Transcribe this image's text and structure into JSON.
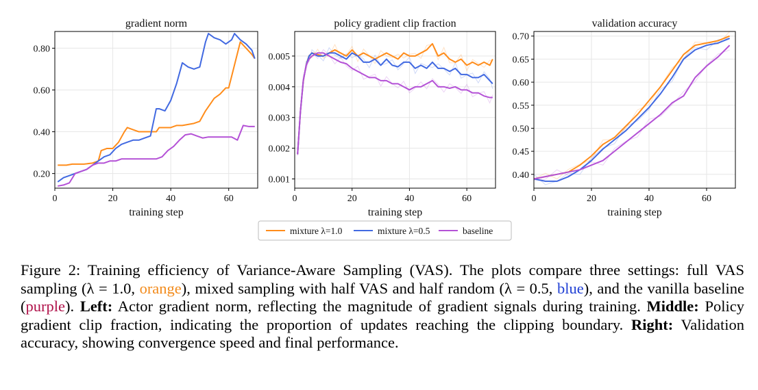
{
  "chart_data": [
    {
      "type": "line",
      "title": "gradient norm",
      "xlabel": "training step",
      "ylabel": "",
      "xlim": [
        0,
        70
      ],
      "ylim": [
        0.13,
        0.88
      ],
      "xticks": [
        0,
        20,
        40,
        60
      ],
      "yticks": [
        0.2,
        0.4,
        0.6,
        0.8
      ],
      "ytick_labels": [
        "0.20",
        "0.40",
        "0.60",
        "0.80"
      ],
      "grid": true,
      "series": [
        {
          "name": "mixture λ=1.0",
          "color": "#ff8c1a",
          "x": [
            1,
            4,
            6,
            8,
            10,
            13,
            15,
            16,
            18,
            20,
            22,
            24,
            25,
            27,
            29,
            31,
            33,
            35,
            36,
            38,
            40,
            42,
            44,
            46,
            48,
            50,
            52,
            54,
            55,
            57,
            59,
            60,
            62,
            64,
            66,
            68,
            69
          ],
          "y": [
            0.24,
            0.24,
            0.245,
            0.245,
            0.245,
            0.25,
            0.26,
            0.31,
            0.32,
            0.32,
            0.35,
            0.4,
            0.42,
            0.41,
            0.4,
            0.4,
            0.4,
            0.4,
            0.42,
            0.42,
            0.42,
            0.43,
            0.43,
            0.435,
            0.44,
            0.45,
            0.5,
            0.54,
            0.56,
            0.58,
            0.61,
            0.61,
            0.72,
            0.83,
            0.8,
            0.77,
            0.75
          ]
        },
        {
          "name": "mixture λ=0.5",
          "color": "#4169e1",
          "x": [
            1,
            3,
            5,
            7,
            9,
            11,
            13,
            15,
            17,
            19,
            21,
            23,
            25,
            27,
            29,
            31,
            33,
            35,
            36,
            38,
            40,
            42,
            44,
            46,
            48,
            50,
            52,
            53,
            55,
            57,
            59,
            61,
            62,
            64,
            66,
            68,
            69
          ],
          "y": [
            0.16,
            0.18,
            0.19,
            0.2,
            0.21,
            0.22,
            0.24,
            0.26,
            0.28,
            0.29,
            0.32,
            0.34,
            0.35,
            0.36,
            0.36,
            0.37,
            0.38,
            0.51,
            0.51,
            0.5,
            0.55,
            0.63,
            0.73,
            0.71,
            0.7,
            0.71,
            0.83,
            0.87,
            0.85,
            0.84,
            0.82,
            0.84,
            0.87,
            0.84,
            0.82,
            0.79,
            0.75
          ]
        },
        {
          "name": "baseline",
          "color": "#b451d6",
          "x": [
            1,
            3,
            5,
            7,
            9,
            11,
            13,
            15,
            17,
            19,
            21,
            23,
            25,
            27,
            29,
            31,
            33,
            35,
            37,
            39,
            41,
            43,
            45,
            47,
            49,
            51,
            53,
            55,
            57,
            59,
            61,
            63,
            65,
            67,
            69
          ],
          "y": [
            0.14,
            0.145,
            0.155,
            0.2,
            0.21,
            0.22,
            0.24,
            0.25,
            0.25,
            0.26,
            0.26,
            0.27,
            0.27,
            0.27,
            0.27,
            0.27,
            0.27,
            0.27,
            0.28,
            0.31,
            0.33,
            0.36,
            0.385,
            0.39,
            0.38,
            0.37,
            0.375,
            0.375,
            0.375,
            0.375,
            0.375,
            0.36,
            0.43,
            0.425,
            0.425
          ]
        }
      ]
    },
    {
      "type": "line",
      "title": "policy gradient clip fraction",
      "xlabel": "training step",
      "ylabel": "",
      "xlim": [
        0,
        70
      ],
      "ylim": [
        0.0007,
        0.0058
      ],
      "xticks": [
        0,
        20,
        40,
        60
      ],
      "yticks": [
        0.001,
        0.002,
        0.003,
        0.004,
        0.005
      ],
      "ytick_labels": [
        "0.001",
        "0.002",
        "0.003",
        "0.004",
        "0.005"
      ],
      "grid": true,
      "series": [
        {
          "name": "mixture λ=1.0",
          "color": "#ff8c1a",
          "x": [
            1,
            2,
            3,
            4,
            5,
            6,
            8,
            10,
            12,
            14,
            16,
            18,
            20,
            22,
            24,
            26,
            28,
            30,
            32,
            34,
            36,
            38,
            40,
            42,
            44,
            46,
            48,
            50,
            52,
            54,
            56,
            58,
            60,
            62,
            64,
            66,
            68,
            69
          ],
          "y": [
            0.0018,
            0.0032,
            0.0042,
            0.0047,
            0.005,
            0.0051,
            0.00505,
            0.005,
            0.0051,
            0.0052,
            0.0051,
            0.005,
            0.0052,
            0.005,
            0.0051,
            0.005,
            0.0049,
            0.005,
            0.0051,
            0.005,
            0.0049,
            0.0051,
            0.005,
            0.005,
            0.0051,
            0.0052,
            0.0054,
            0.005,
            0.0051,
            0.0049,
            0.0048,
            0.0049,
            0.0047,
            0.0048,
            0.0047,
            0.0048,
            0.0047,
            0.0049
          ]
        },
        {
          "name": "mixture λ=0.5",
          "color": "#4169e1",
          "x": [
            1,
            2,
            3,
            4,
            5,
            6,
            8,
            10,
            12,
            14,
            16,
            18,
            20,
            22,
            24,
            26,
            28,
            30,
            32,
            34,
            36,
            38,
            40,
            42,
            44,
            46,
            48,
            50,
            52,
            54,
            56,
            58,
            60,
            62,
            64,
            66,
            68,
            69
          ],
          "y": [
            0.0018,
            0.0032,
            0.0042,
            0.0047,
            0.005,
            0.0051,
            0.005,
            0.005,
            0.0051,
            0.0051,
            0.005,
            0.0049,
            0.0051,
            0.005,
            0.0048,
            0.0048,
            0.0049,
            0.0047,
            0.0049,
            0.0047,
            0.00465,
            0.0048,
            0.0048,
            0.0046,
            0.0047,
            0.0046,
            0.0048,
            0.0046,
            0.0046,
            0.0045,
            0.0046,
            0.0044,
            0.0044,
            0.0043,
            0.0043,
            0.0044,
            0.0042,
            0.0041
          ]
        },
        {
          "name": "baseline",
          "color": "#b451d6",
          "x": [
            1,
            2,
            3,
            4,
            5,
            6,
            8,
            10,
            12,
            14,
            16,
            18,
            20,
            22,
            24,
            26,
            28,
            30,
            32,
            34,
            36,
            38,
            40,
            42,
            44,
            46,
            48,
            50,
            52,
            54,
            56,
            58,
            60,
            62,
            64,
            66,
            68,
            69
          ],
          "y": [
            0.0018,
            0.0032,
            0.0042,
            0.0047,
            0.0049,
            0.005,
            0.0051,
            0.0051,
            0.005,
            0.0049,
            0.0048,
            0.00475,
            0.0046,
            0.0045,
            0.0044,
            0.0043,
            0.0043,
            0.0042,
            0.0042,
            0.0041,
            0.0041,
            0.004,
            0.0039,
            0.004,
            0.004,
            0.0041,
            0.0042,
            0.004,
            0.004,
            0.00395,
            0.004,
            0.0039,
            0.0039,
            0.0038,
            0.0038,
            0.0037,
            0.00365,
            0.00365
          ]
        }
      ]
    },
    {
      "type": "line",
      "title": "validation accuracy",
      "xlabel": "training step",
      "ylabel": "",
      "xlim": [
        0,
        70
      ],
      "ylim": [
        0.37,
        0.71
      ],
      "xticks": [
        0,
        20,
        40,
        60
      ],
      "yticks": [
        0.4,
        0.45,
        0.5,
        0.55,
        0.6,
        0.65,
        0.7
      ],
      "ytick_labels": [
        "0.40",
        "0.45",
        "0.50",
        "0.55",
        "0.60",
        "0.65",
        "0.70"
      ],
      "grid": true,
      "series": [
        {
          "name": "mixture λ=1.0",
          "color": "#ff8c1a",
          "x": [
            0,
            4,
            8,
            12,
            16,
            20,
            24,
            28,
            32,
            36,
            40,
            44,
            48,
            52,
            56,
            60,
            64,
            68
          ],
          "y": [
            0.39,
            0.395,
            0.4,
            0.405,
            0.42,
            0.44,
            0.465,
            0.48,
            0.505,
            0.53,
            0.56,
            0.59,
            0.625,
            0.66,
            0.68,
            0.685,
            0.69,
            0.7
          ]
        },
        {
          "name": "mixture λ=0.5",
          "color": "#4169e1",
          "x": [
            0,
            4,
            8,
            12,
            16,
            20,
            24,
            28,
            32,
            36,
            40,
            44,
            48,
            52,
            56,
            60,
            64,
            68
          ],
          "y": [
            0.39,
            0.385,
            0.385,
            0.395,
            0.41,
            0.43,
            0.455,
            0.475,
            0.495,
            0.52,
            0.545,
            0.575,
            0.61,
            0.65,
            0.67,
            0.68,
            0.685,
            0.695
          ]
        },
        {
          "name": "baseline",
          "color": "#b451d6",
          "x": [
            0,
            4,
            8,
            12,
            16,
            20,
            24,
            28,
            32,
            36,
            40,
            44,
            48,
            52,
            56,
            60,
            64,
            68
          ],
          "y": [
            0.39,
            0.395,
            0.4,
            0.405,
            0.41,
            0.42,
            0.43,
            0.45,
            0.47,
            0.49,
            0.51,
            0.53,
            0.555,
            0.57,
            0.61,
            0.635,
            0.655,
            0.68
          ]
        }
      ]
    }
  ],
  "legend": {
    "placement": "bottom-center",
    "entries": [
      {
        "label": "mixture λ=1.0",
        "color": "#ff8c1a"
      },
      {
        "label": "mixture λ=0.5",
        "color": "#4169e1"
      },
      {
        "label": "baseline",
        "color": "#b451d6"
      }
    ]
  },
  "caption": {
    "figure_label": "Figure 2:",
    "part1": " Training efficiency of Variance-Aware Sampling (VAS). The plots compare three settings: full VAS sampling (",
    "lambda1": "λ = 1.0,",
    "orange_word": "orange",
    "part2": "), mixed sampling with half VAS and half random (",
    "lambda2": "λ = 0.5,",
    "blue_word": "blue",
    "part3": "), and the vanilla baseline (",
    "purple_word": "purple",
    "part4": "). ",
    "left_label": "Left:",
    "left_text": " Actor gradient norm, reflecting the magnitude of gradient signals during training. ",
    "middle_label": "Middle:",
    "middle_text": " Policy gradient clip fraction, indicating the proportion of updates reaching the clipping boundary. ",
    "right_label": "Right:",
    "right_text": " Validation accuracy, showing convergence speed and final performance."
  }
}
